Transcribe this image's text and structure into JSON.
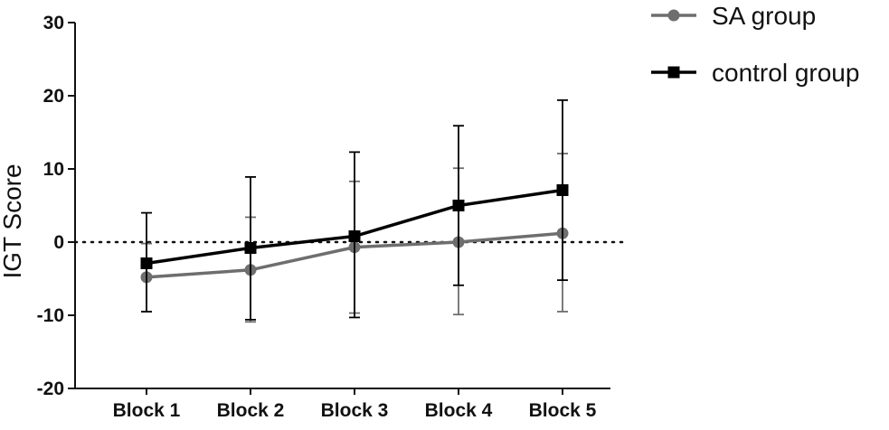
{
  "chart_data": {
    "type": "line",
    "ylabel": "IGT  Score",
    "xlabel": "",
    "title": "",
    "categories": [
      "Block 1",
      "Block 2",
      "Block 3",
      "Block 4",
      "Block 5"
    ],
    "ylim": [
      -20,
      30
    ],
    "yticks": [
      30,
      20,
      10,
      0,
      -10,
      -20
    ],
    "reference_line": {
      "y": 0,
      "style": "dotted"
    },
    "legend_position": "top-right",
    "series": [
      {
        "name": "SA group",
        "marker": "circle",
        "color": "#6e6e6e",
        "values": [
          -4.8,
          -3.8,
          -0.7,
          0.0,
          1.2
        ],
        "error_upper": [
          -0.2,
          3.4,
          8.3,
          10.1,
          12.1
        ],
        "error_lower": [
          -9.5,
          -10.9,
          -9.7,
          -9.9,
          -9.5
        ]
      },
      {
        "name": "control group",
        "marker": "square",
        "color": "#000000",
        "values": [
          -2.9,
          -0.8,
          0.8,
          5.0,
          7.1
        ],
        "error_upper": [
          4.0,
          8.9,
          12.3,
          15.9,
          19.4
        ],
        "error_lower": [
          -9.5,
          -10.6,
          -10.3,
          -5.9,
          -5.2
        ]
      }
    ]
  }
}
